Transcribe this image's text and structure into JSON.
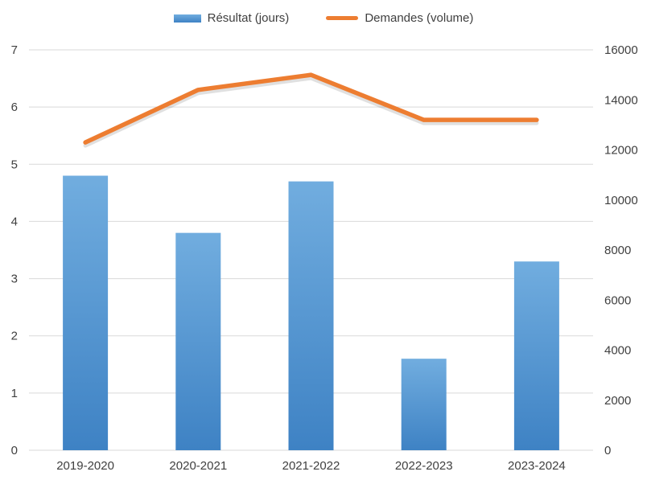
{
  "chart_data": {
    "type": "bar",
    "title": "",
    "categories": [
      "2019-2020",
      "2020-2021",
      "2021-2022",
      "2022-2023",
      "2023-2024"
    ],
    "series": [
      {
        "name": "Résultat (jours)",
        "type": "bar",
        "axis": "left",
        "values": [
          4.8,
          3.8,
          4.7,
          1.6,
          3.3
        ]
      },
      {
        "name": "Demandes (volume)",
        "type": "line",
        "axis": "right",
        "values": [
          12300,
          14400,
          15000,
          13200,
          13200
        ]
      }
    ],
    "left_axis": {
      "min": 0,
      "max": 7,
      "step": 1,
      "ticks": [
        0,
        1,
        2,
        3,
        4,
        5,
        6,
        7
      ]
    },
    "right_axis": {
      "min": 0,
      "max": 16000,
      "step": 2000,
      "ticks": [
        0,
        2000,
        4000,
        6000,
        8000,
        10000,
        12000,
        14000,
        16000
      ]
    },
    "grid": true,
    "legend_position": "top",
    "colors": {
      "bar_top": "#71addf",
      "bar_bottom": "#3e82c4",
      "line": "#ED7D31",
      "grid": "#d9d9d9",
      "text": "#404040"
    }
  }
}
